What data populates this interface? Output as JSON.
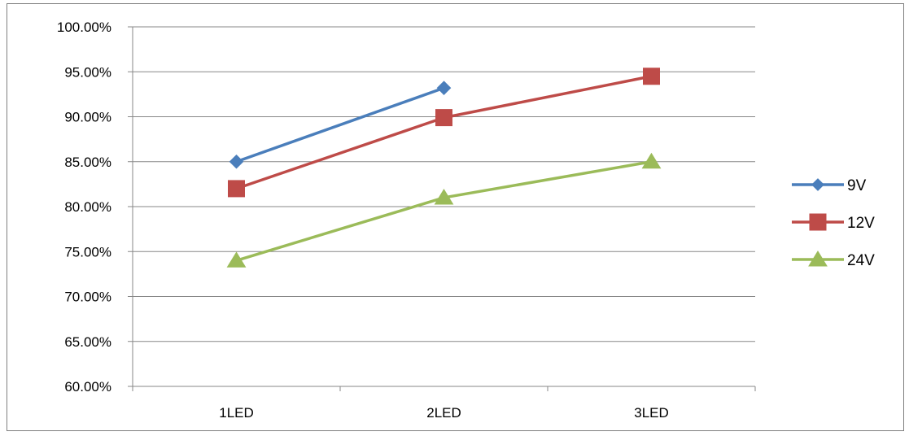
{
  "chart_data": {
    "type": "line",
    "categories": [
      "1LED",
      "2LED",
      "3LED"
    ],
    "series": [
      {
        "name": "9V",
        "values": [
          0.85,
          0.932,
          null
        ],
        "color": "#4a7ebb",
        "marker": "diamond"
      },
      {
        "name": "12V",
        "values": [
          0.82,
          0.899,
          0.945
        ],
        "color": "#be4b48",
        "marker": "square"
      },
      {
        "name": "24V",
        "values": [
          0.74,
          0.81,
          0.85
        ],
        "color": "#9bbb59",
        "marker": "triangle"
      }
    ],
    "ylim": [
      0.6,
      1.0
    ],
    "yticks": [
      0.6,
      0.65,
      0.7,
      0.75,
      0.8,
      0.85,
      0.9,
      0.95,
      1.0
    ],
    "ytick_labels": [
      "60.00%",
      "65.00%",
      "70.00%",
      "75.00%",
      "80.00%",
      "85.00%",
      "90.00%",
      "95.00%",
      "100.00%"
    ],
    "grid": true,
    "legend": "right"
  }
}
